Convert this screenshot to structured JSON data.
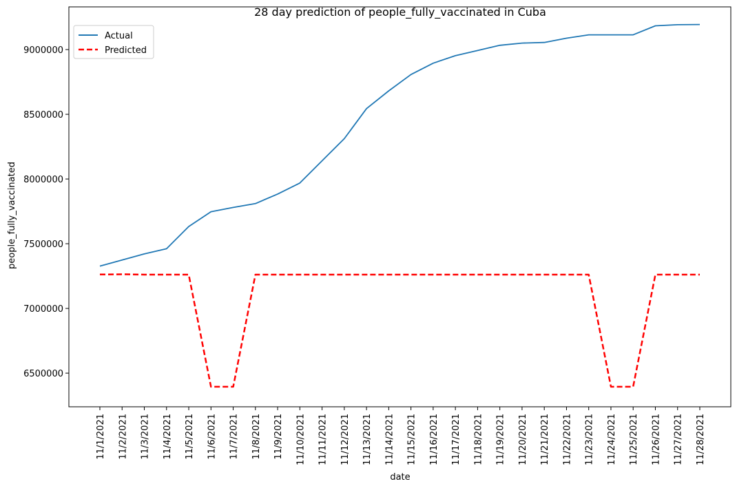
{
  "chart_data": {
    "type": "line",
    "title": "28 day prediction of people_fully_vaccinated in Cuba",
    "xlabel": "date",
    "ylabel": "people_fully_vaccinated",
    "x": [
      "11/1/2021",
      "11/2/2021",
      "11/3/2021",
      "11/4/2021",
      "11/5/2021",
      "11/6/2021",
      "11/7/2021",
      "11/8/2021",
      "11/9/2021",
      "11/10/2021",
      "11/11/2021",
      "11/12/2021",
      "11/13/2021",
      "11/14/2021",
      "11/15/2021",
      "11/16/2021",
      "11/17/2021",
      "11/18/2021",
      "11/19/2021",
      "11/20/2021",
      "11/21/2021",
      "11/22/2021",
      "11/23/2021",
      "11/24/2021",
      "11/25/2021",
      "11/26/2021",
      "11/27/2021",
      "11/28/2021"
    ],
    "yticks": [
      "6500000",
      "7000000",
      "7500000",
      "8000000",
      "8500000",
      "9000000"
    ],
    "ylim": [
      6240000,
      9330000
    ],
    "grid": false,
    "legend_position": "top-left",
    "series": [
      {
        "name": "Actual",
        "color": "#1f77b4",
        "style": "solid",
        "values": [
          7327000,
          7374000,
          7421000,
          7461000,
          7633000,
          7747000,
          7780000,
          7810000,
          7884000,
          7969000,
          8141000,
          8312000,
          8544000,
          8681000,
          8807000,
          8895000,
          8953000,
          8993000,
          9033000,
          9050000,
          9055000,
          9088000,
          9114000,
          9114000,
          9114000,
          9184000,
          9192000,
          9194000
        ]
      },
      {
        "name": "Predicted",
        "color": "#ff0000",
        "style": "dashed",
        "values": [
          7262000,
          7264000,
          7261000,
          7261000,
          7261000,
          6395000,
          6395000,
          7261000,
          7261000,
          7261000,
          7261000,
          7261000,
          7261000,
          7261000,
          7261000,
          7261000,
          7261000,
          7261000,
          7261000,
          7261000,
          7261000,
          7261000,
          7261000,
          6395000,
          6395000,
          7261000,
          7261000,
          7261000
        ]
      }
    ]
  }
}
